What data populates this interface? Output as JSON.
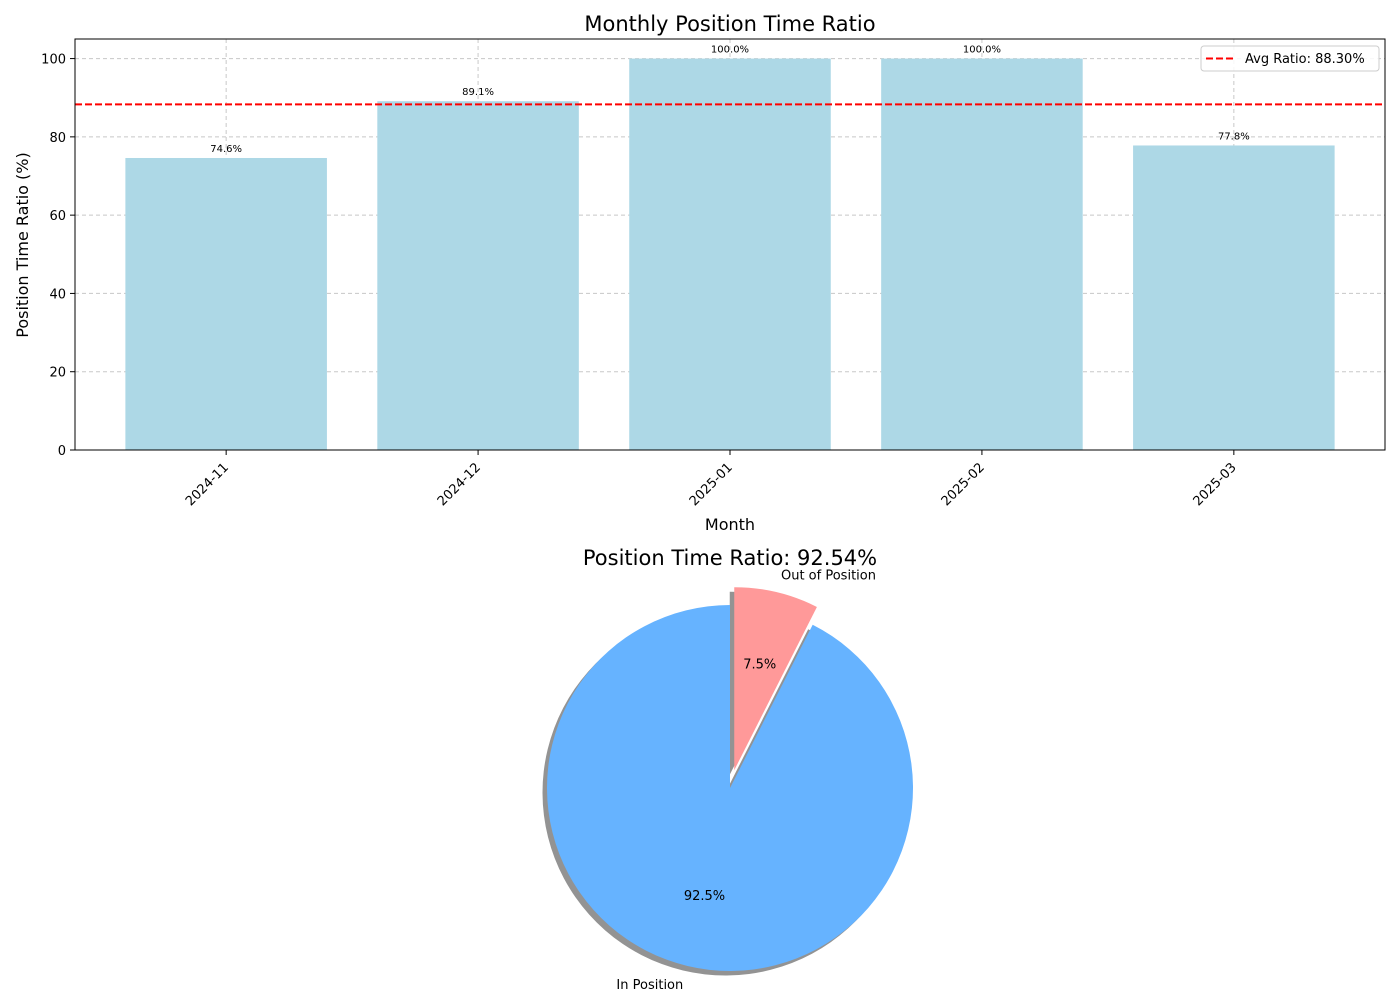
{
  "chart_data": [
    {
      "type": "bar",
      "title": "Monthly Position Time Ratio",
      "xlabel": "Month",
      "ylabel": "Position Time Ratio (%)",
      "categories": [
        "2024-11",
        "2024-12",
        "2025-01",
        "2025-02",
        "2025-03"
      ],
      "values": [
        74.6,
        89.1,
        100.0,
        100.0,
        77.8
      ],
      "data_labels": [
        "74.6%",
        "89.1%",
        "100.0%",
        "100.0%",
        "77.8%"
      ],
      "ylim": [
        0,
        105
      ],
      "yticks": [
        0,
        20,
        40,
        60,
        80,
        100
      ],
      "grid": true,
      "bar_color": "#add8e6",
      "reference_line": {
        "label": "Avg Ratio: 88.30%",
        "value": 88.3,
        "color": "#ff0000",
        "style": "dashed"
      },
      "legend_position": "top-right"
    },
    {
      "type": "pie",
      "title": "Position Time Ratio: 92.54%",
      "slices": [
        {
          "label": "Out of Position",
          "value": 7.46,
          "pct_label": "7.5%",
          "color": "#ff9999",
          "exploded": true
        },
        {
          "label": "In Position",
          "value": 92.54,
          "pct_label": "92.5%",
          "color": "#66b3ff",
          "exploded": false
        }
      ],
      "shadow": true
    }
  ]
}
